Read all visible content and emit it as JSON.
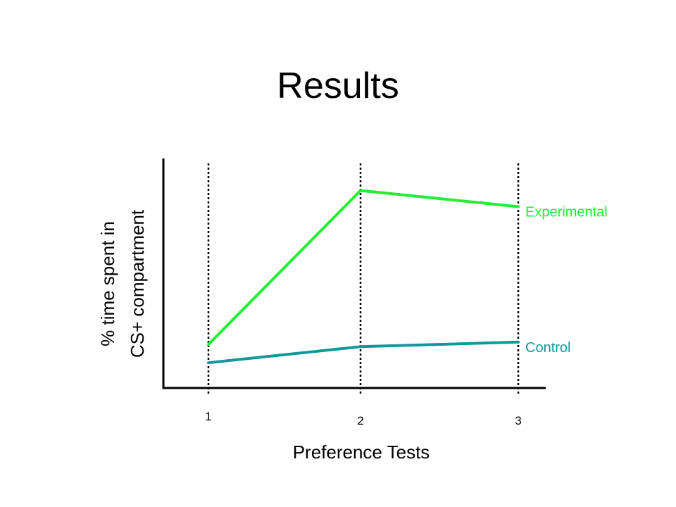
{
  "title": "Results",
  "chart_data": {
    "type": "line",
    "title": "Results",
    "xlabel": "Preference Tests",
    "ylabel": [
      "% time spent in",
      "CS+ compartment"
    ],
    "x": [
      1,
      2,
      3
    ],
    "tick_labels": [
      "1",
      "2",
      "3"
    ],
    "y_ticks_shown": false,
    "vertical_guides": "dotted lines at each test",
    "series": [
      {
        "name": "Experimental",
        "values": [
          19,
          86,
          79
        ],
        "color": "#22ee33"
      },
      {
        "name": "Control",
        "values": [
          11,
          18,
          20
        ],
        "color": "#119999"
      }
    ],
    "legend": "direct labels at line ends (right)",
    "ylim": [
      0,
      100
    ]
  }
}
